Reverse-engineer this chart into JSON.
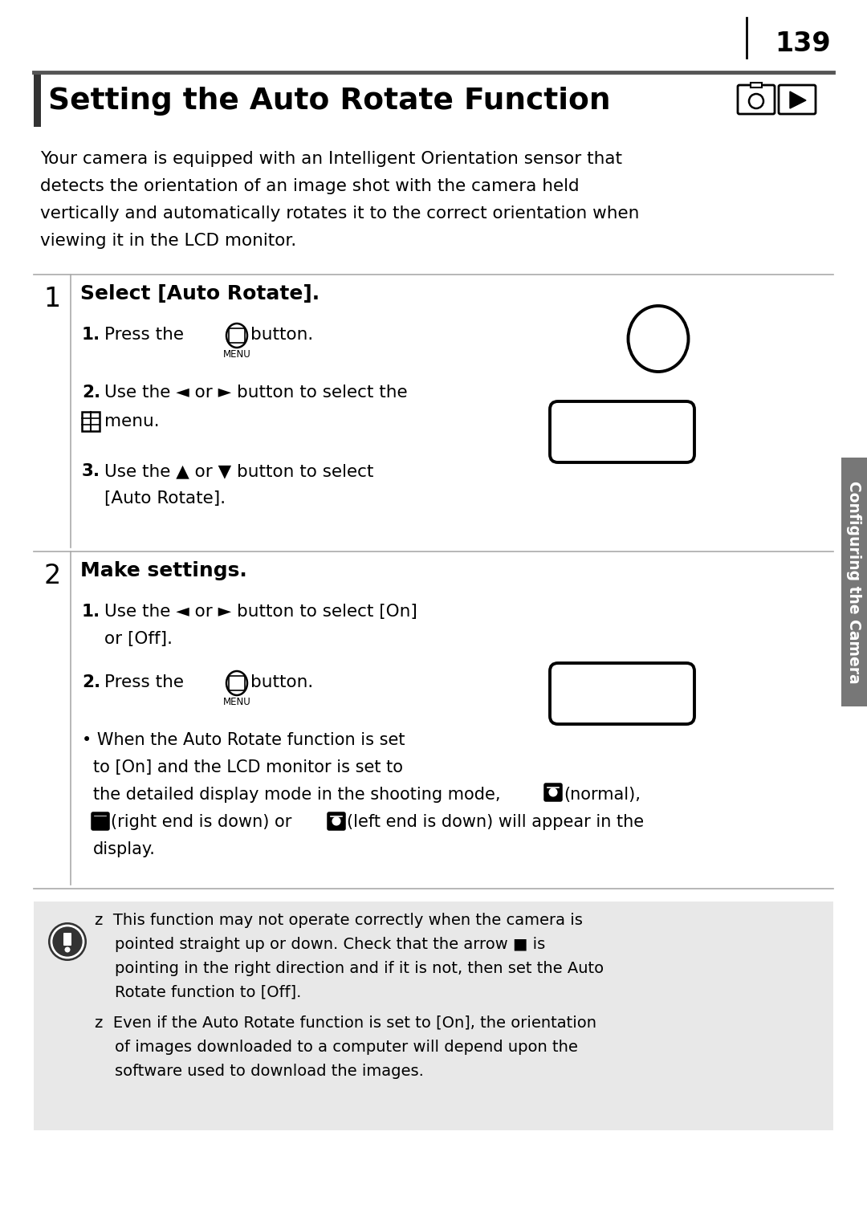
{
  "page_number": "139",
  "title": "Setting the Auto Rotate Function",
  "intro_lines": [
    "Your camera is equipped with an Intelligent Orientation sensor that",
    "detects the orientation of an image shot with the camera held",
    "vertically and automatically rotates it to the correct orientation when",
    "viewing it in the LCD monitor."
  ],
  "step1_num": "1",
  "step1_heading": "Select [Auto Rotate].",
  "step2_num": "2",
  "step2_heading": "Make settings.",
  "sidebar_text": "Configuring the Camera",
  "warn_icon_color": "#3a3a3a",
  "note_bg": "#e8e8e8",
  "divider_color": "#aaaaaa",
  "title_bar_top_color": "#555555",
  "left_accent_color": "#333333",
  "sidebar_color": "#777777",
  "bg_color": "#ffffff"
}
